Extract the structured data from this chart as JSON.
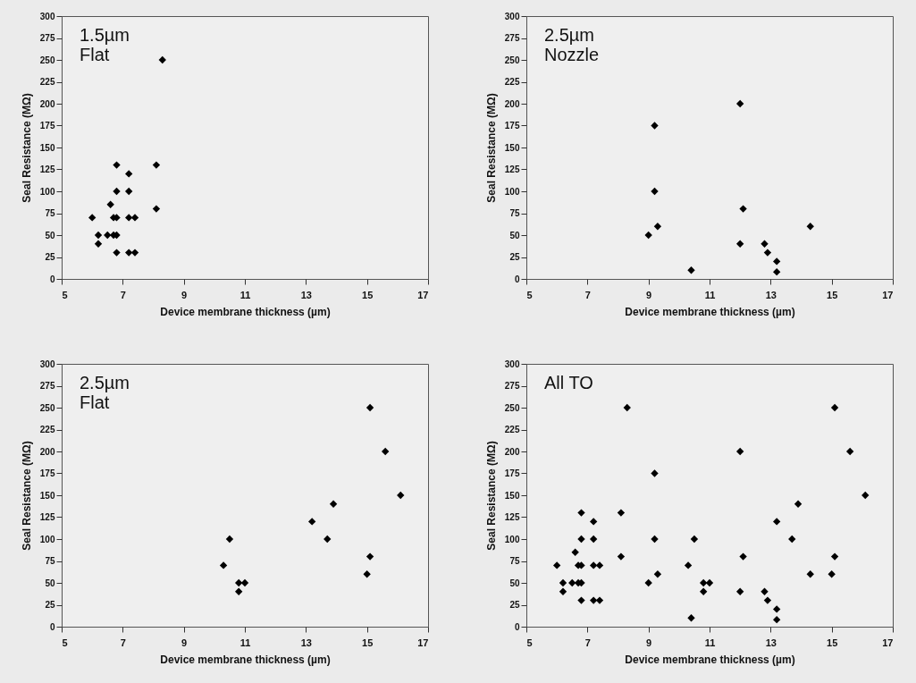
{
  "chart_data": [
    {
      "type": "scatter",
      "annotations": [
        "1.5µm",
        "Flat"
      ],
      "xlabel": "Device membrane thickness (µm)",
      "ylabel": "Seal Resistance (MΩ)",
      "xlim": [
        5,
        17
      ],
      "xticks": [
        5,
        7,
        9,
        11,
        13,
        15,
        17
      ],
      "ylim": [
        0,
        300
      ],
      "yticks": [
        0,
        25,
        50,
        75,
        100,
        125,
        150,
        175,
        200,
        225,
        250,
        275,
        300
      ],
      "grid": false,
      "marker": "diamond",
      "series": [
        {
          "color": "#000000",
          "x": [
            6.0,
            6.2,
            6.2,
            6.6,
            6.7,
            6.8,
            6.5,
            6.7,
            6.8,
            6.8,
            6.8,
            6.8,
            7.2,
            7.2,
            7.2,
            7.4,
            7.2,
            7.4,
            8.1,
            8.1,
            8.3
          ],
          "values": [
            70,
            50,
            40,
            85,
            70,
            70,
            50,
            50,
            50,
            130,
            100,
            30,
            120,
            100,
            70,
            70,
            30,
            30,
            130,
            80,
            250
          ]
        }
      ]
    },
    {
      "type": "scatter",
      "annotations": [
        "2.5µm",
        "Nozzle"
      ],
      "xlabel": "Device membrane thickness (µm)",
      "ylabel": "Seal Resistance (MΩ)",
      "xlim": [
        5,
        17
      ],
      "xticks": [
        5,
        7,
        9,
        11,
        13,
        15,
        17
      ],
      "ylim": [
        0,
        300
      ],
      "yticks": [
        0,
        25,
        50,
        75,
        100,
        125,
        150,
        175,
        200,
        225,
        250,
        275,
        300
      ],
      "grid": false,
      "marker": "diamond",
      "series": [
        {
          "color": "#000000",
          "x": [
            9.0,
            9.2,
            9.2,
            9.3,
            10.4,
            12.0,
            12.1,
            12.0,
            12.8,
            12.9,
            13.2,
            13.2,
            14.3
          ],
          "values": [
            50,
            175,
            100,
            60,
            10,
            200,
            80,
            40,
            40,
            30,
            20,
            8,
            60
          ]
        }
      ]
    },
    {
      "type": "scatter",
      "annotations": [
        "2.5µm",
        "Flat"
      ],
      "xlabel": "Device membrane thickness (µm)",
      "ylabel": "Seal Resistance (MΩ)",
      "xlim": [
        5,
        17
      ],
      "xticks": [
        5,
        7,
        9,
        11,
        13,
        15,
        17
      ],
      "ylim": [
        0,
        300
      ],
      "yticks": [
        0,
        25,
        50,
        75,
        100,
        125,
        150,
        175,
        200,
        225,
        250,
        275,
        300
      ],
      "grid": false,
      "marker": "diamond",
      "series": [
        {
          "color": "#000000",
          "x": [
            10.5,
            10.3,
            10.8,
            10.8,
            11.0,
            13.2,
            13.7,
            13.9,
            15.1,
            15.1,
            15.0,
            15.6,
            16.1
          ],
          "values": [
            100,
            70,
            40,
            50,
            50,
            120,
            100,
            140,
            250,
            80,
            60,
            200,
            150
          ]
        }
      ]
    },
    {
      "type": "scatter",
      "annotations": [
        "All TO"
      ],
      "xlabel": "Device membrane thickness (µm)",
      "ylabel": "Seal Resistance (MΩ)",
      "xlim": [
        5,
        17
      ],
      "xticks": [
        5,
        7,
        9,
        11,
        13,
        15,
        17
      ],
      "ylim": [
        0,
        300
      ],
      "yticks": [
        0,
        25,
        50,
        75,
        100,
        125,
        150,
        175,
        200,
        225,
        250,
        275,
        300
      ],
      "grid": false,
      "marker": "diamond",
      "series": [
        {
          "color": "#000000",
          "x": [
            6.0,
            6.2,
            6.2,
            6.6,
            6.7,
            6.8,
            6.5,
            6.7,
            6.8,
            6.8,
            6.8,
            6.8,
            7.2,
            7.2,
            7.2,
            7.4,
            7.2,
            7.4,
            8.1,
            8.1,
            8.3,
            9.0,
            9.2,
            9.2,
            9.3,
            10.4,
            12.0,
            12.1,
            12.0,
            12.8,
            12.9,
            13.2,
            13.2,
            14.3,
            10.5,
            10.3,
            10.8,
            10.8,
            11.0,
            13.2,
            13.7,
            13.9,
            15.1,
            15.1,
            15.0,
            15.6,
            16.1
          ],
          "values": [
            70,
            50,
            40,
            85,
            70,
            70,
            50,
            50,
            50,
            130,
            100,
            30,
            120,
            100,
            70,
            70,
            30,
            30,
            130,
            80,
            250,
            50,
            175,
            100,
            60,
            10,
            200,
            80,
            40,
            40,
            30,
            20,
            8,
            60,
            100,
            70,
            40,
            50,
            50,
            120,
            100,
            140,
            250,
            80,
            60,
            200,
            150
          ]
        }
      ]
    }
  ]
}
